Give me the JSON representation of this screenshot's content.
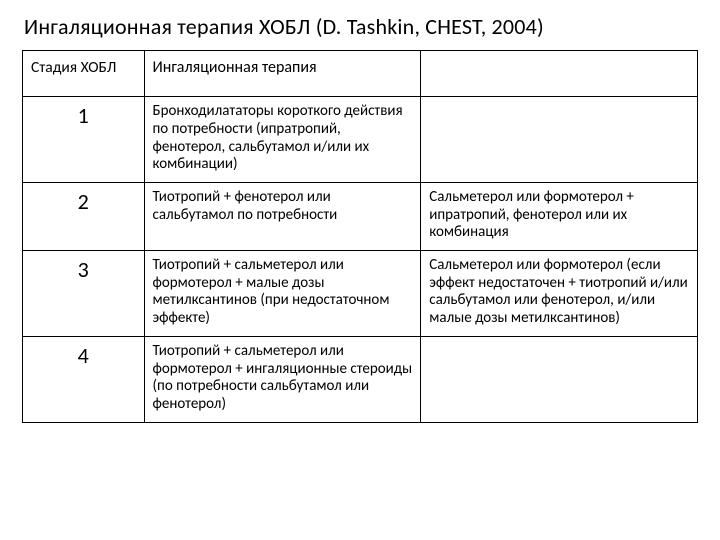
{
  "title": "Ингаляционная терапия ХОБЛ (D. Tashkin, CHEST, 2004)",
  "table": {
    "type": "table",
    "border_color": "#000000",
    "background_color": "#ffffff",
    "text_color": "#000000",
    "title_fontsize": 22,
    "header_fontsize": 16,
    "cell_fontsize": 15,
    "stage_fontsize": 22,
    "col_widths_pct": [
      18,
      41,
      41
    ],
    "columns": [
      "Стадия ХОБЛ",
      "Ингаляционная терапия",
      ""
    ],
    "rows": [
      {
        "stage": "1",
        "c1": "Бронходилататоры короткого действия по потребности (ипратропий, фенотерол, сальбутамол и/или их комбинации)",
        "c2": ""
      },
      {
        "stage": "2",
        "c1": "Тиотропий + фенотерол или сальбутамол по потребности",
        "c2": "Сальметерол или формотерол + ипратропий, фенотерол или их комбинация"
      },
      {
        "stage": "3",
        "c1": "Тиотропий + сальметерол или формотерол + малые дозы метилксантинов (при недостаточном эффекте)",
        "c2": "Сальметерол или формотерол (если эффект недостаточен + тиотропий и/или сальбутамол или фенотерол, и/или малые дозы метилксантинов)"
      },
      {
        "stage": "4",
        "c1": "Тиотропий + сальметерол или формотерол + ингаляционные стероиды (по потребности сальбутамол или фенотерол)",
        "c2": ""
      }
    ]
  }
}
